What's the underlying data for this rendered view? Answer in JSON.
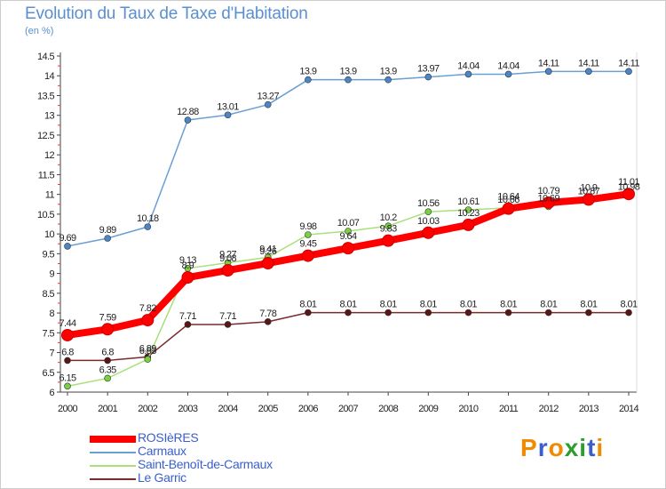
{
  "title": "Evolution du Taux de Taxe d'Habitation",
  "unit_label": "(en %)",
  "watermark": {
    "text": "Proxiti",
    "letter_colors": [
      "#f08a00",
      "#3a5fcd",
      "#f08a00",
      "#2d9d2d",
      "#2d9d2d",
      "#3a5fcd",
      "#f08a00"
    ]
  },
  "chart_data": {
    "type": "line",
    "x": [
      "2000",
      "2001",
      "2002",
      "2003",
      "2004",
      "2005",
      "2006",
      "2007",
      "2008",
      "2009",
      "2010",
      "2011",
      "2012",
      "2013",
      "2014"
    ],
    "ylim": [
      6,
      14.5
    ],
    "yticks": [
      "6",
      "6.5",
      "7",
      "7.5",
      "8",
      "8.5",
      "9",
      "9.5",
      "10",
      "10.5",
      "11",
      "11.5",
      "12",
      "12.5",
      "13",
      "13.5",
      "14",
      "14.5"
    ],
    "grid": false,
    "legend_position": "bottom-left",
    "series": [
      {
        "name": "ROSIèRES",
        "color": "#ff0000",
        "marker_color": "#ff0000",
        "values": [
          7.44,
          7.59,
          7.82,
          8.9,
          9.08,
          9.26,
          9.45,
          9.64,
          9.83,
          10.03,
          10.23,
          10.64,
          10.79,
          10.87,
          11.01
        ],
        "labels": [
          "7.44",
          "7.59",
          "7.82",
          "8.9",
          "9.08",
          "9.26",
          "9.45",
          "9.64",
          "9.83",
          "10.03",
          "10.23",
          "10.64",
          "10.79",
          "10.9",
          "11.01"
        ]
      },
      {
        "name": "Carmaux",
        "color": "#6a9fd4",
        "marker_color": "#4a86c8",
        "values": [
          9.69,
          9.89,
          10.18,
          12.88,
          13.01,
          13.27,
          13.9,
          13.9,
          13.9,
          13.97,
          14.04,
          14.04,
          14.11,
          14.11,
          14.11
        ],
        "labels": [
          "9.69",
          "9.89",
          "10.18",
          "12.88",
          "13.01",
          "13.27",
          "13.9",
          "13.9",
          "13.9",
          "13.97",
          "14.04",
          "14.04",
          "14.11",
          "14.11",
          "14.11"
        ]
      },
      {
        "name": "Saint-Benoît-de-Carmaux",
        "color": "#a8e07a",
        "marker_color": "#7ad040",
        "values": [
          6.15,
          6.35,
          6.83,
          9.13,
          9.27,
          9.41,
          9.98,
          10.07,
          10.2,
          10.56,
          10.61,
          10.66,
          10.69,
          10.87,
          10.98
        ],
        "labels": [
          "6.15",
          "6.35",
          "6.83",
          "9.13",
          "9.27",
          "9.41",
          "9.98",
          "10.07",
          "10.2",
          "10.56",
          "10.61",
          "10.66",
          "10.69",
          "10.87",
          "10.98"
        ]
      },
      {
        "name": "Le Garric",
        "color": "#7a2a2a",
        "marker_color": "#5a1515",
        "values": [
          6.8,
          6.8,
          6.89,
          7.71,
          7.71,
          7.78,
          8.01,
          8.01,
          8.01,
          8.01,
          8.01,
          8.01,
          8.01,
          8.01,
          8.01
        ],
        "labels": [
          "6.8",
          "6.8",
          "6.89",
          "7.71",
          "7.71",
          "7.78",
          "8.01",
          "8.01",
          "8.01",
          "8.01",
          "8.01",
          "8.01",
          "8.01",
          "8.01",
          "8.01"
        ]
      }
    ]
  }
}
